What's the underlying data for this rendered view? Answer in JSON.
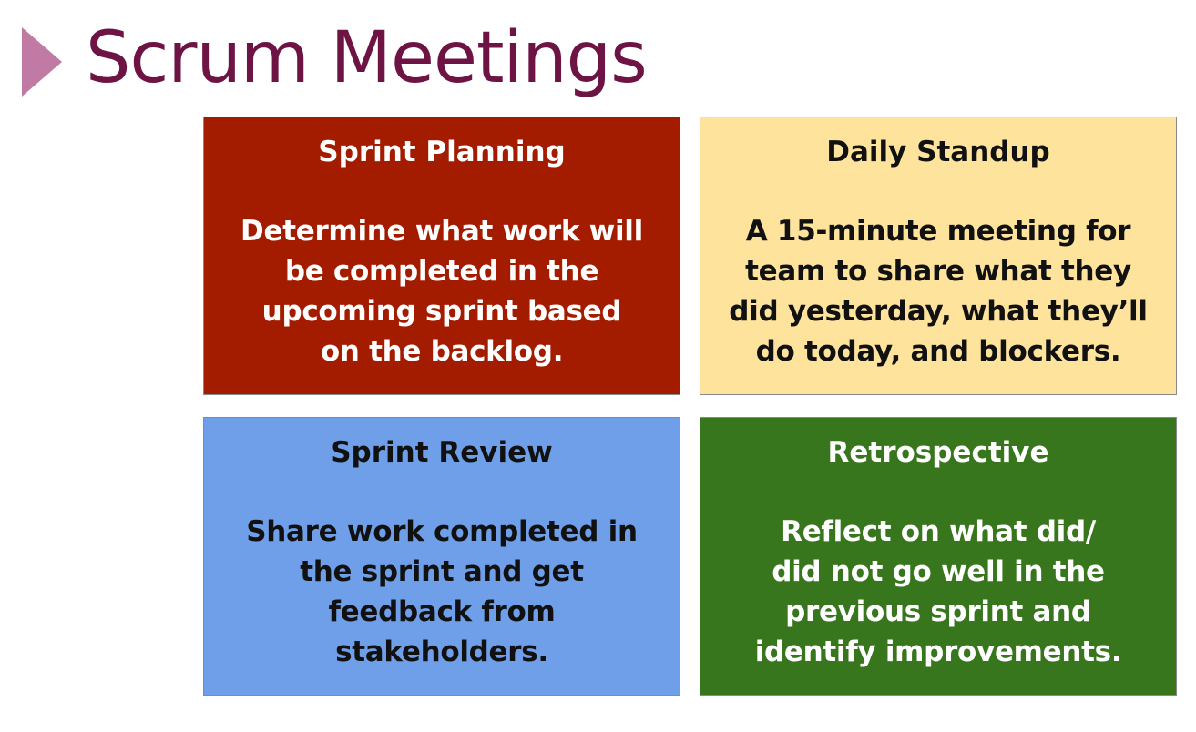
{
  "slide": {
    "title": "Scrum Meetings"
  },
  "colors": {
    "title": "#6e1444",
    "arrow": "#c07aa4",
    "sprint_planning_bg": "#a41c00",
    "daily_standup_bg": "#fee39c",
    "sprint_review_bg": "#6e9fe8",
    "retrospective_bg": "#38761d"
  },
  "cards": [
    {
      "heading": "Sprint Planning",
      "body_lines": [
        "Determine what work will",
        "be completed in the",
        "upcoming sprint based",
        "on the backlog."
      ],
      "bg": "#a41c00",
      "text_color": "#ffffff"
    },
    {
      "heading": "Daily Standup",
      "body_lines": [
        "A 15-minute meeting for",
        "team to share what they",
        "did yesterday, what they’ll",
        "do today, and blockers."
      ],
      "bg": "#fee39c",
      "text_color": "#111111"
    },
    {
      "heading": "Sprint Review",
      "body_lines": [
        "Share work completed in",
        "the sprint and get",
        "feedback from",
        "stakeholders."
      ],
      "bg": "#6e9fe8",
      "text_color": "#111111"
    },
    {
      "heading": "Retrospective",
      "body_lines": [
        "Reflect on what did/",
        "did not go well in the",
        "previous sprint and",
        "identify improvements."
      ],
      "bg": "#38761d",
      "text_color": "#ffffff"
    }
  ]
}
